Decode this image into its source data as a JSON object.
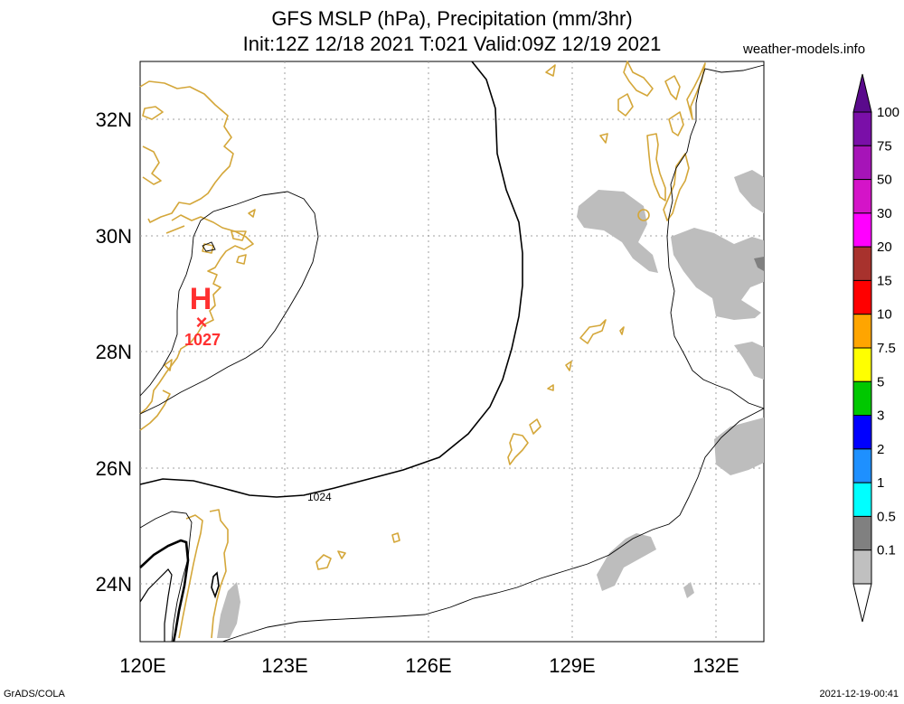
{
  "title_line1": "GFS MSLP (hPa), Precipitation (mm/3hr)",
  "title_line2": "Init:12Z 12/18 2021 T:021 Valid:09Z 12/19 2021",
  "site": "weather-models.info",
  "footer_left": "GrADS/COLA",
  "footer_right": "2021-12-19-00:41",
  "lat_labels": [
    "32N",
    "30N",
    "28N",
    "26N",
    "24N"
  ],
  "lon_labels": [
    "120E",
    "123E",
    "126E",
    "129E",
    "132E"
  ],
  "high_pressure": {
    "letter": "H",
    "marker": "×",
    "value": "1027"
  },
  "isobar_label": "1024",
  "colorbar": {
    "labels": [
      "100",
      "75",
      "50",
      "30",
      "20",
      "15",
      "10",
      "7.5",
      "5",
      "3",
      "2",
      "1",
      "0.5",
      "0.1"
    ],
    "colors": [
      "#7a0fa8",
      "#a614b8",
      "#d414c8",
      "#ff00ff",
      "#a8322d",
      "#ff0000",
      "#ffa500",
      "#ffff00",
      "#00c800",
      "#0000ff",
      "#1e90ff",
      "#00ffff",
      "#808080",
      "#c0c0c0"
    ],
    "top_color": "#5a0a8c"
  },
  "colors": {
    "coast": "#d4a73a",
    "precip_light": "#bdbdbd",
    "precip_dark": "#808080",
    "high": "#ff3030",
    "grid": "#a0a0a0"
  }
}
